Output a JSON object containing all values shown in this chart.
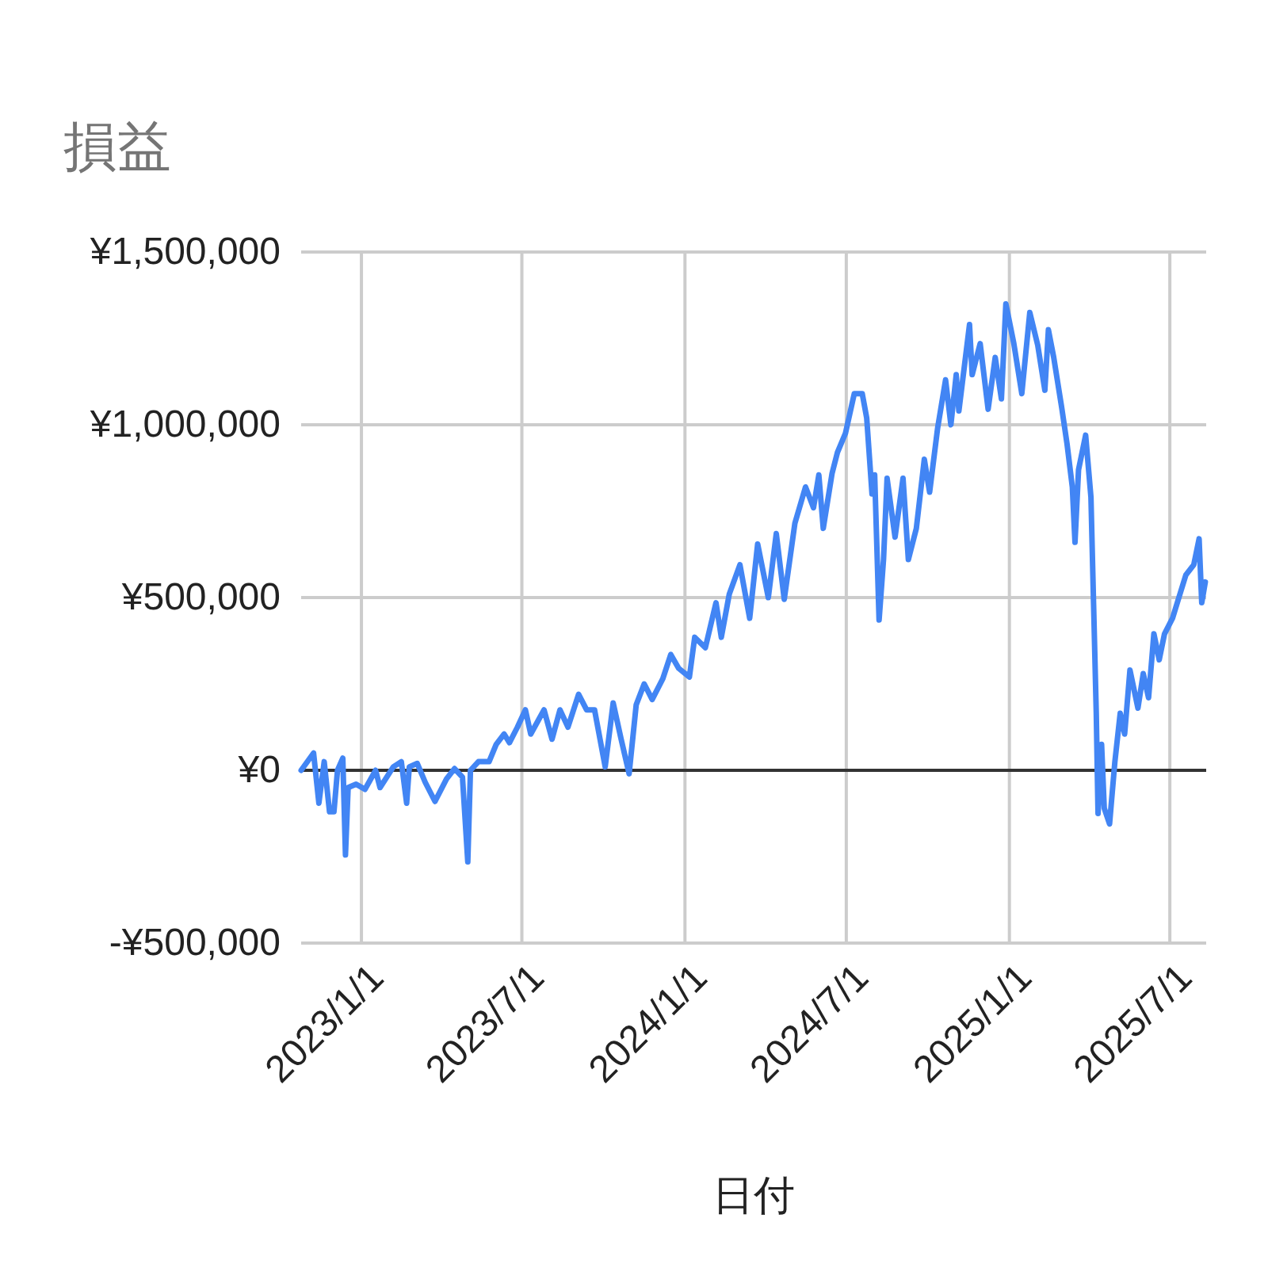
{
  "chart_data": {
    "type": "line",
    "title": "損益",
    "xlabel": "日付",
    "x": [
      "2022-10-25",
      "2022-11-08",
      "2022-11-14",
      "2022-11-20",
      "2022-11-26",
      "2022-12-01",
      "2022-12-05",
      "2022-12-11",
      "2022-12-14",
      "2022-12-17",
      "2022-12-26",
      "2023-01-05",
      "2023-01-17",
      "2023-01-22",
      "2023-02-06",
      "2023-02-15",
      "2023-02-21",
      "2023-02-24",
      "2023-03-05",
      "2023-03-14",
      "2023-03-25",
      "2023-04-07",
      "2023-04-16",
      "2023-04-25",
      "2023-05-01",
      "2023-05-04",
      "2023-05-13",
      "2023-05-25",
      "2023-06-02",
      "2023-06-11",
      "2023-06-17",
      "2023-06-26",
      "2023-07-05",
      "2023-07-11",
      "2023-07-26",
      "2023-08-04",
      "2023-08-13",
      "2023-08-22",
      "2023-09-03",
      "2023-09-12",
      "2023-09-21",
      "2023-10-03",
      "2023-10-12",
      "2023-10-21",
      "2023-10-30",
      "2023-11-07",
      "2023-11-16",
      "2023-11-25",
      "2023-12-07",
      "2023-12-16",
      "2023-12-25",
      "2024-01-06",
      "2024-01-12",
      "2024-01-24",
      "2024-02-05",
      "2024-02-11",
      "2024-02-20",
      "2024-03-03",
      "2024-03-14",
      "2024-03-23",
      "2024-04-04",
      "2024-04-13",
      "2024-04-22",
      "2024-05-04",
      "2024-05-16",
      "2024-05-25",
      "2024-05-31",
      "2024-06-05",
      "2024-06-15",
      "2024-06-21",
      "2024-06-30",
      "2024-07-10",
      "2024-07-19",
      "2024-07-24",
      "2024-07-30",
      "2024-08-02",
      "2024-08-07",
      "2024-08-12",
      "2024-08-16",
      "2024-08-25",
      "2024-09-03",
      "2024-09-09",
      "2024-09-18",
      "2024-09-27",
      "2024-10-03",
      "2024-10-12",
      "2024-10-21",
      "2024-10-27",
      "2024-11-02",
      "2024-11-05",
      "2024-11-17",
      "2024-11-20",
      "2024-11-29",
      "2024-12-08",
      "2024-12-16",
      "2024-12-23",
      "2024-12-28",
      "2025-01-06",
      "2025-01-15",
      "2025-01-24",
      "2025-02-02",
      "2025-02-10",
      "2025-02-14",
      "2025-02-20",
      "2025-03-01",
      "2025-03-07",
      "2025-03-13",
      "2025-03-16",
      "2025-03-20",
      "2025-03-28",
      "2025-04-03",
      "2025-04-09",
      "2025-04-11",
      "2025-04-15",
      "2025-04-18",
      "2025-04-24",
      "2025-04-30",
      "2025-05-06",
      "2025-05-11",
      "2025-05-17",
      "2025-05-26",
      "2025-06-01",
      "2025-06-07",
      "2025-06-13",
      "2025-06-19",
      "2025-06-25",
      "2025-07-04",
      "2025-07-13",
      "2025-07-19",
      "2025-07-28",
      "2025-08-03",
      "2025-08-06",
      "2025-08-10"
    ],
    "series": [
      {
        "color": "#4285f4",
        "values": [
          0,
          50000,
          -95000,
          25000,
          -120000,
          -120000,
          0,
          35000,
          -245000,
          -50000,
          -40000,
          -55000,
          0,
          -50000,
          10000,
          25000,
          -95000,
          10000,
          20000,
          -35000,
          -90000,
          -25000,
          5000,
          -20000,
          -265000,
          0,
          25000,
          25000,
          75000,
          105000,
          80000,
          125000,
          175000,
          105000,
          175000,
          90000,
          175000,
          125000,
          220000,
          175000,
          175000,
          10000,
          195000,
          90000,
          -10000,
          190000,
          250000,
          205000,
          265000,
          335000,
          295000,
          270000,
          385000,
          355000,
          485000,
          385000,
          510000,
          595000,
          440000,
          655000,
          500000,
          685000,
          495000,
          715000,
          820000,
          760000,
          855000,
          700000,
          860000,
          920000,
          975000,
          1090000,
          1090000,
          1020000,
          800000,
          855000,
          435000,
          610000,
          845000,
          675000,
          845000,
          610000,
          700000,
          900000,
          805000,
          990000,
          1130000,
          1000000,
          1145000,
          1040000,
          1290000,
          1145000,
          1235000,
          1045000,
          1195000,
          1075000,
          1350000,
          1235000,
          1090000,
          1325000,
          1230000,
          1100000,
          1275000,
          1195000,
          1050000,
          945000,
          820000,
          660000,
          870000,
          970000,
          790000,
          165000,
          -125000,
          75000,
          -110000,
          -155000,
          25000,
          165000,
          105000,
          290000,
          180000,
          280000,
          210000,
          395000,
          320000,
          395000,
          440000,
          515000,
          565000,
          595000,
          670000,
          485000,
          545000
        ]
      }
    ],
    "xlim": [
      "2022-10-25",
      "2025-08-11"
    ],
    "xticks": [
      {
        "value": "2023-01-01",
        "label": "2023/1/1"
      },
      {
        "value": "2023-07-01",
        "label": "2023/7/1"
      },
      {
        "value": "2024-01-01",
        "label": "2024/1/1"
      },
      {
        "value": "2024-07-01",
        "label": "2024/7/1"
      },
      {
        "value": "2025-01-01",
        "label": "2025/1/1"
      },
      {
        "value": "2025-07-01",
        "label": "2025/7/1"
      }
    ],
    "ylim": [
      -500000,
      1500000
    ],
    "yticks": [
      {
        "value": -500000,
        "label": "-¥500,000"
      },
      {
        "value": 0,
        "label": "¥0"
      },
      {
        "value": 500000,
        "label": "¥500,000"
      },
      {
        "value": 1000000,
        "label": "¥1,000,000"
      },
      {
        "value": 1500000,
        "label": "¥1,500,000"
      }
    ],
    "ref_lines": [
      {
        "axis": "y",
        "value": 0,
        "color": "#333333"
      }
    ],
    "grid": true
  }
}
